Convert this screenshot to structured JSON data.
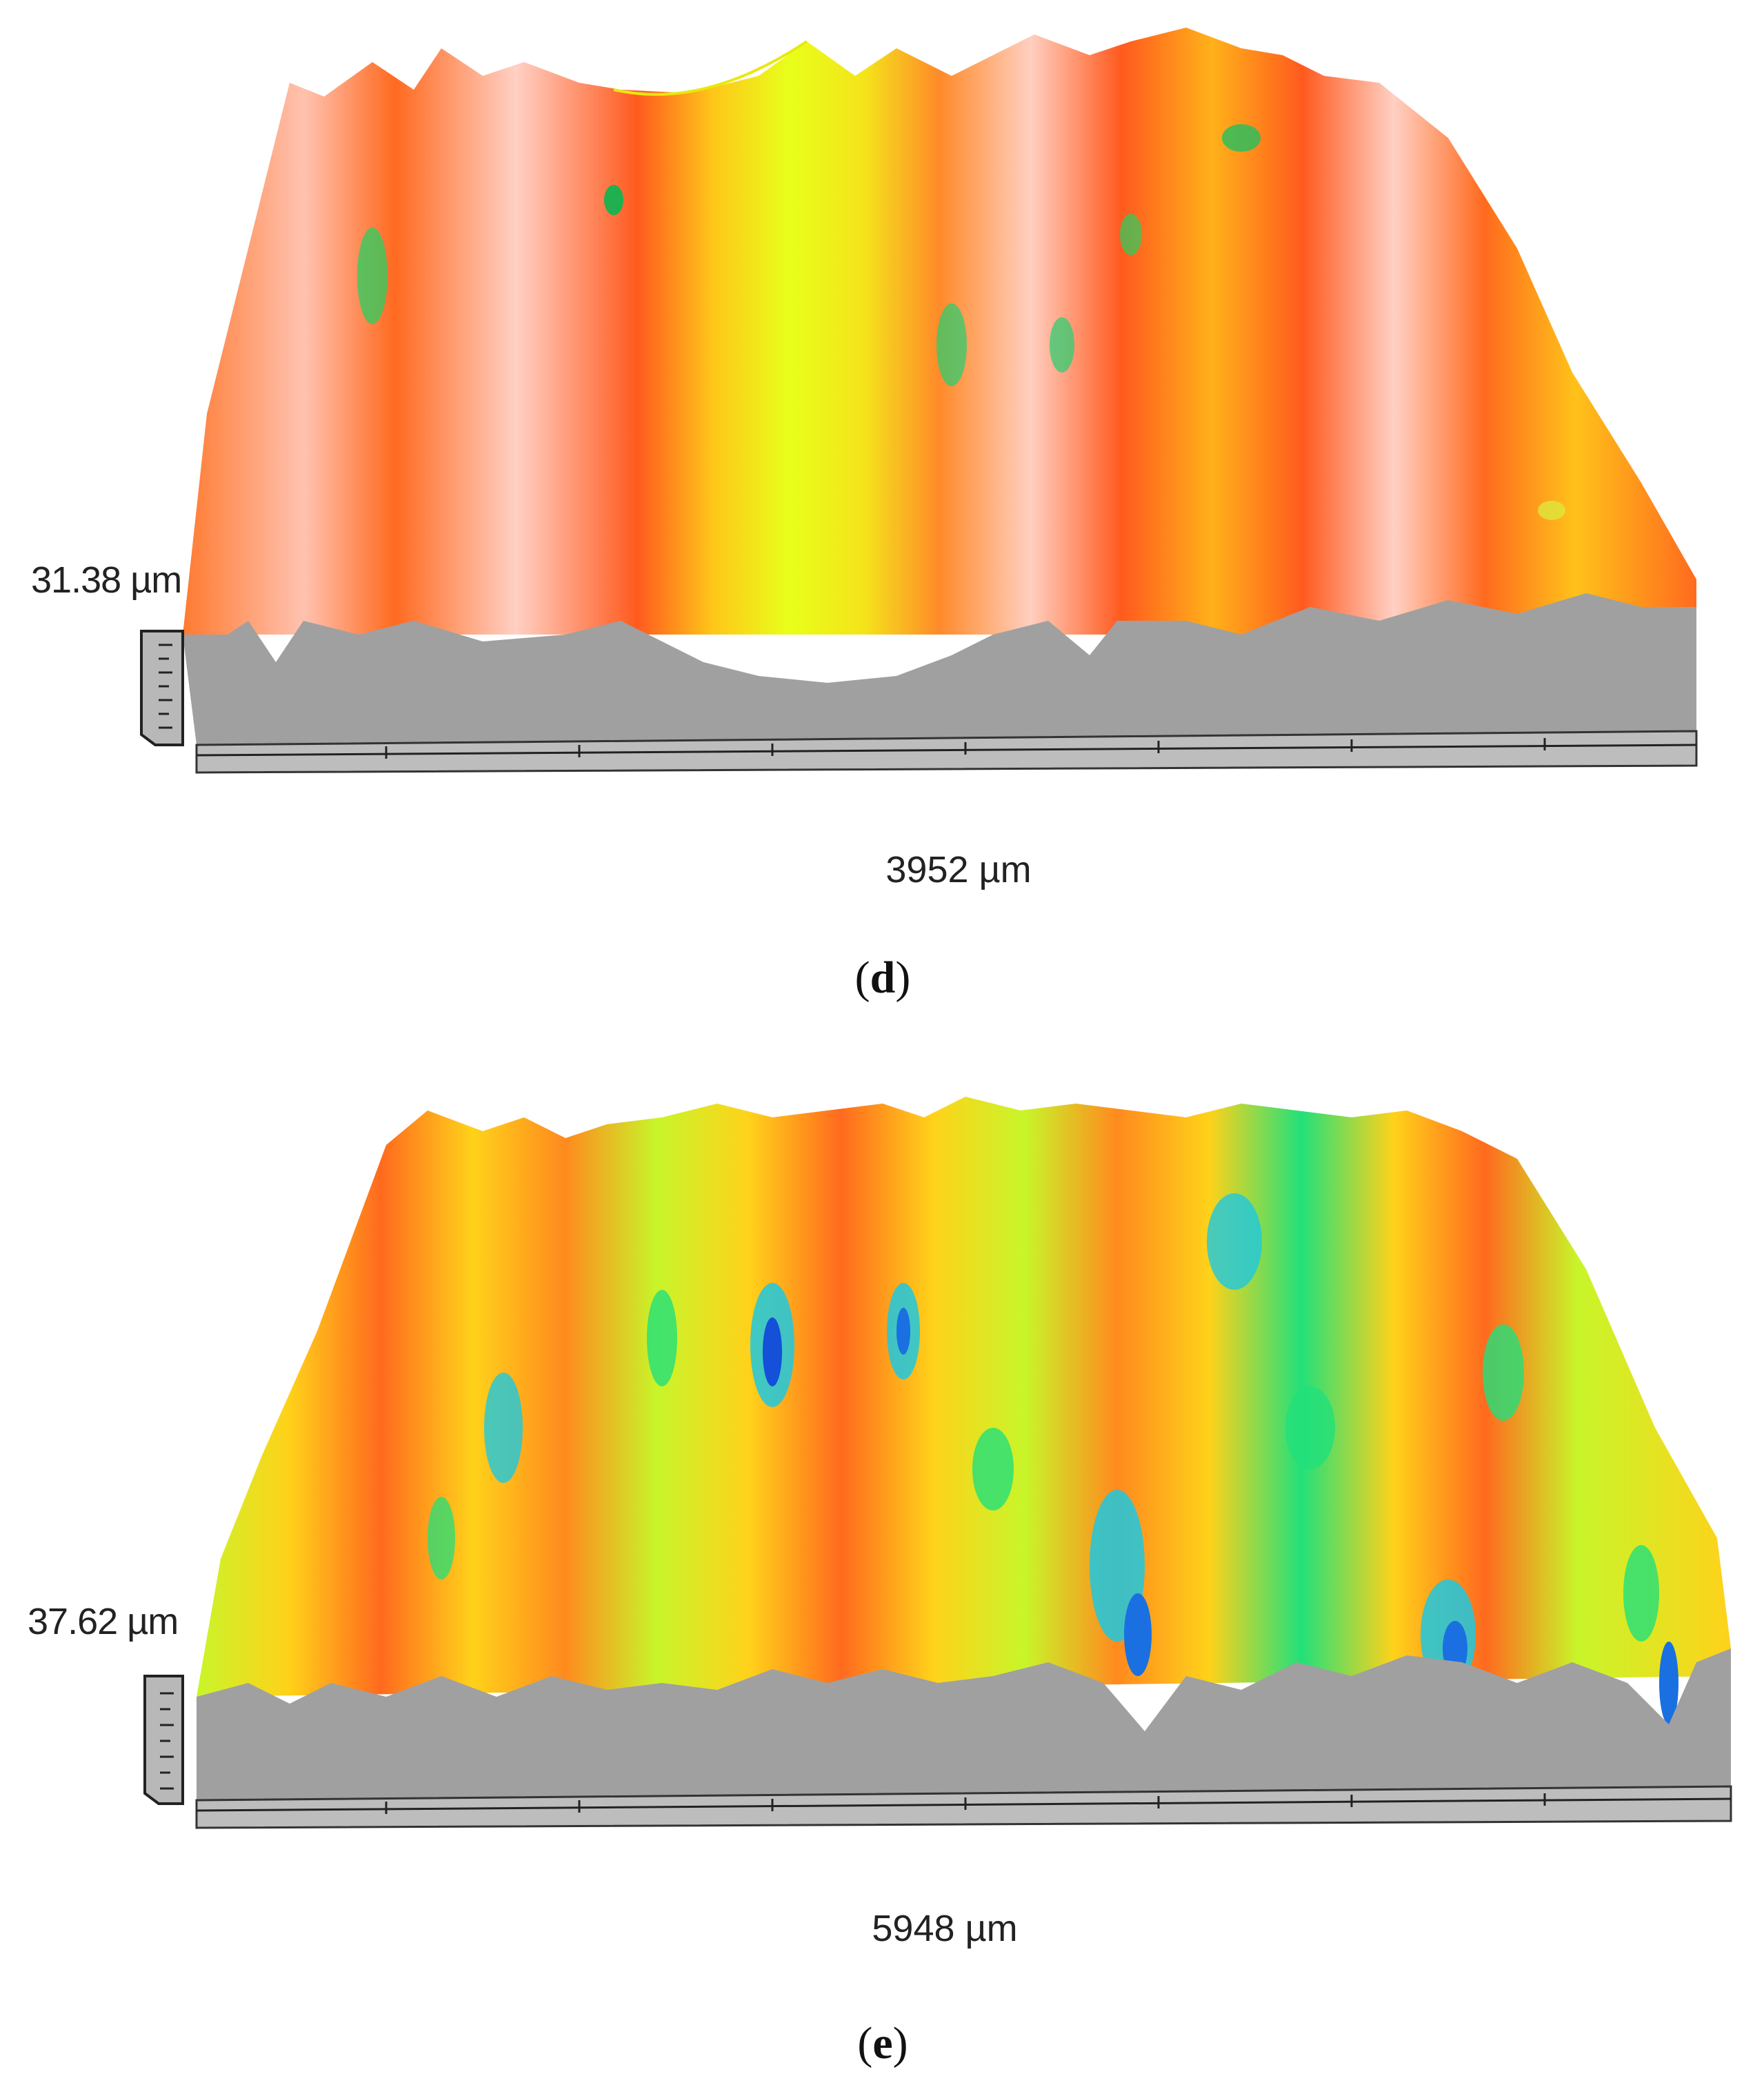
{
  "panels": [
    {
      "id": "d",
      "z_scale_label": "31.38 µm",
      "x_length_label": "3952 µm",
      "caption_open": "(",
      "caption_letter": "d",
      "caption_close": ")",
      "palette": [
        "#ff5a1e",
        "#ff8a2a",
        "#ffd0c4",
        "#ffc61a",
        "#e8ff1a"
      ]
    },
    {
      "id": "e",
      "z_scale_label": "37.62 µm",
      "x_length_label": "5948 µm",
      "caption_open": "(",
      "caption_letter": "e",
      "caption_close": ")",
      "palette": [
        "#ff6a1e",
        "#ffd21a",
        "#c8f52a",
        "#22e07a",
        "#1ec8e0",
        "#1450d8"
      ]
    }
  ]
}
